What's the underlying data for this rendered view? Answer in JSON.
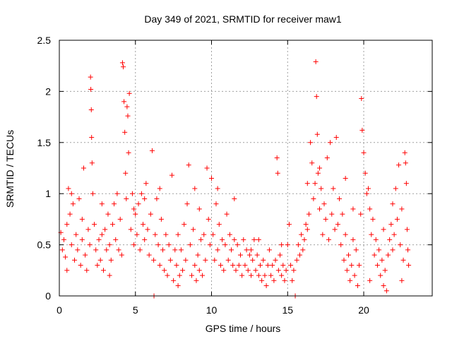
{
  "chart_data": {
    "type": "scatter",
    "title": "Day 349 of 2021, SRMTID for receiver maw1",
    "xlabel": "GPS time / hours",
    "ylabel": "SRMTID / TECUs",
    "xlim": [
      0,
      24.5
    ],
    "ylim": [
      0,
      2.5
    ],
    "x_ticks": [
      0,
      5,
      10,
      15,
      20
    ],
    "y_ticks": [
      0,
      0.5,
      1,
      1.5,
      2,
      2.5
    ],
    "grid": true,
    "marker": "plus",
    "color": "#ff0000",
    "series": [
      {
        "name": "SRMTID",
        "points": [
          [
            0.1,
            0.62
          ],
          [
            0.2,
            0.45
          ],
          [
            0.3,
            0.55
          ],
          [
            0.4,
            0.38
          ],
          [
            0.5,
            0.7
          ],
          [
            0.6,
            1.05
          ],
          [
            0.7,
            0.8
          ],
          [
            0.8,
            0.5
          ],
          [
            0.9,
            0.9
          ],
          [
            1.0,
            0.35
          ],
          [
            1.1,
            0.6
          ],
          [
            1.2,
            0.45
          ],
          [
            1.3,
            0.95
          ],
          [
            1.4,
            0.3
          ],
          [
            1.5,
            0.55
          ],
          [
            1.6,
            1.25
          ],
          [
            1.7,
            0.4
          ],
          [
            1.8,
            0.25
          ],
          [
            1.9,
            0.65
          ],
          [
            2.0,
            0.5
          ],
          [
            2.05,
            2.14
          ],
          [
            2.07,
            2.02
          ],
          [
            2.1,
            1.82
          ],
          [
            2.12,
            1.55
          ],
          [
            2.15,
            1.3
          ],
          [
            2.2,
            1.0
          ],
          [
            2.3,
            0.7
          ],
          [
            2.4,
            0.45
          ],
          [
            2.5,
            0.3
          ],
          [
            2.6,
            0.55
          ],
          [
            2.7,
            0.35
          ],
          [
            2.8,
            0.6
          ],
          [
            2.9,
            0.25
          ],
          [
            3.0,
            0.65
          ],
          [
            3.1,
            0.45
          ],
          [
            3.2,
            0.8
          ],
          [
            3.3,
            0.5
          ],
          [
            3.4,
            0.35
          ],
          [
            3.5,
            0.7
          ],
          [
            3.6,
            0.9
          ],
          [
            3.7,
            0.55
          ],
          [
            3.8,
            1.0
          ],
          [
            3.9,
            0.45
          ],
          [
            4.0,
            0.75
          ],
          [
            4.1,
            0.4
          ],
          [
            4.15,
            2.28
          ],
          [
            4.2,
            2.24
          ],
          [
            4.25,
            1.9
          ],
          [
            4.3,
            1.6
          ],
          [
            4.35,
            1.2
          ],
          [
            4.4,
            0.95
          ],
          [
            4.45,
            1.85
          ],
          [
            4.5,
            1.76
          ],
          [
            4.55,
            1.4
          ],
          [
            4.6,
            1.98
          ],
          [
            4.7,
            0.65
          ],
          [
            4.8,
            1.0
          ],
          [
            4.9,
            0.5
          ],
          [
            5.0,
            0.8
          ],
          [
            5.1,
            0.6
          ],
          [
            5.2,
            0.9
          ],
          [
            5.3,
            0.45
          ],
          [
            5.4,
            1.0
          ],
          [
            5.5,
            0.7
          ],
          [
            5.6,
            0.55
          ],
          [
            5.7,
            1.1
          ],
          [
            5.8,
            0.65
          ],
          [
            5.9,
            0.4
          ],
          [
            6.0,
            0.8
          ],
          [
            6.1,
            1.42
          ],
          [
            6.2,
            0.35
          ],
          [
            6.22,
            0.0
          ],
          [
            6.3,
            0.6
          ],
          [
            6.4,
            0.95
          ],
          [
            6.5,
            0.5
          ],
          [
            6.6,
            0.3
          ],
          [
            6.7,
            0.75
          ],
          [
            6.8,
            0.45
          ],
          [
            6.9,
            0.25
          ],
          [
            7.0,
            0.6
          ],
          [
            7.1,
            0.2
          ],
          [
            7.2,
            0.5
          ],
          [
            7.3,
            0.35
          ],
          [
            7.4,
            1.18
          ],
          [
            7.5,
            0.15
          ],
          [
            7.6,
            0.45
          ],
          [
            7.7,
            0.3
          ],
          [
            7.8,
            0.6
          ],
          [
            7.9,
            0.2
          ],
          [
            8.0,
            0.45
          ],
          [
            8.1,
            0.25
          ],
          [
            8.2,
            0.7
          ],
          [
            8.3,
            0.35
          ],
          [
            8.4,
            0.9
          ],
          [
            8.5,
            1.28
          ],
          [
            8.6,
            0.5
          ],
          [
            8.7,
            0.2
          ],
          [
            8.8,
            0.65
          ],
          [
            8.9,
            0.3
          ],
          [
            9.0,
            0.15
          ],
          [
            9.1,
            0.4
          ],
          [
            9.2,
            0.25
          ],
          [
            9.3,
            0.55
          ],
          [
            9.4,
            0.2
          ],
          [
            9.5,
            0.6
          ],
          [
            9.6,
            0.35
          ],
          [
            9.7,
            1.25
          ],
          [
            9.8,
            0.75
          ],
          [
            9.9,
            0.5
          ],
          [
            10.0,
            1.15
          ],
          [
            10.1,
            0.6
          ],
          [
            10.2,
            0.35
          ],
          [
            10.3,
            0.9
          ],
          [
            10.4,
            0.45
          ],
          [
            10.5,
            0.7
          ],
          [
            10.6,
            0.3
          ],
          [
            10.7,
            0.55
          ],
          [
            10.8,
            0.25
          ],
          [
            10.9,
            0.5
          ],
          [
            11.0,
            0.8
          ],
          [
            11.1,
            0.35
          ],
          [
            11.2,
            0.6
          ],
          [
            11.3,
            0.45
          ],
          [
            11.4,
            0.3
          ],
          [
            11.5,
            0.55
          ],
          [
            11.6,
            0.25
          ],
          [
            11.7,
            0.5
          ],
          [
            11.8,
            0.3
          ],
          [
            11.9,
            0.4
          ],
          [
            12.0,
            0.2
          ],
          [
            12.1,
            0.55
          ],
          [
            12.2,
            0.3
          ],
          [
            12.3,
            0.45
          ],
          [
            12.4,
            0.25
          ],
          [
            12.5,
            0.4
          ],
          [
            12.6,
            0.2
          ],
          [
            12.7,
            0.35
          ],
          [
            12.8,
            0.55
          ],
          [
            12.9,
            0.25
          ],
          [
            13.0,
            0.4
          ],
          [
            13.1,
            0.2
          ],
          [
            13.2,
            0.3
          ],
          [
            13.3,
            0.15
          ],
          [
            13.4,
            0.35
          ],
          [
            13.5,
            0.2
          ],
          [
            13.6,
            0.1
          ],
          [
            13.7,
            0.3
          ],
          [
            13.8,
            0.45
          ],
          [
            13.9,
            0.2
          ],
          [
            14.0,
            0.3
          ],
          [
            14.1,
            0.15
          ],
          [
            14.2,
            0.35
          ],
          [
            14.3,
            1.35
          ],
          [
            14.35,
            1.2
          ],
          [
            14.4,
            0.25
          ],
          [
            14.5,
            0.4
          ],
          [
            14.6,
            0.2
          ],
          [
            14.7,
            0.3
          ],
          [
            14.8,
            0.15
          ],
          [
            14.9,
            0.25
          ],
          [
            15.0,
            0.5
          ],
          [
            15.1,
            0.7
          ],
          [
            15.2,
            0.3
          ],
          [
            15.3,
            0.15
          ],
          [
            15.4,
            0.25
          ],
          [
            15.5,
            0.0
          ],
          [
            15.6,
            0.35
          ],
          [
            15.7,
            0.5
          ],
          [
            15.8,
            0.4
          ],
          [
            15.9,
            0.6
          ],
          [
            16.0,
            0.45
          ],
          [
            16.1,
            0.55
          ],
          [
            16.2,
            0.7
          ],
          [
            16.3,
            0.65
          ],
          [
            16.4,
            0.8
          ],
          [
            16.5,
            1.5
          ],
          [
            16.6,
            1.3
          ],
          [
            16.7,
            0.95
          ],
          [
            16.8,
            1.1
          ],
          [
            16.85,
            2.29
          ],
          [
            16.9,
            1.95
          ],
          [
            16.95,
            1.58
          ],
          [
            17.0,
            1.2
          ],
          [
            17.1,
            0.85
          ],
          [
            17.2,
            1.05
          ],
          [
            17.3,
            0.6
          ],
          [
            17.4,
            0.9
          ],
          [
            17.5,
            0.75
          ],
          [
            17.6,
            1.35
          ],
          [
            17.7,
            0.55
          ],
          [
            17.8,
            1.5
          ],
          [
            17.9,
            0.8
          ],
          [
            18.0,
            1.05
          ],
          [
            18.1,
            0.65
          ],
          [
            18.2,
            1.55
          ],
          [
            18.3,
            0.7
          ],
          [
            18.4,
            0.95
          ],
          [
            18.5,
            0.5
          ],
          [
            18.6,
            0.8
          ],
          [
            18.7,
            0.35
          ],
          [
            18.8,
            0.6
          ],
          [
            18.9,
            0.25
          ],
          [
            19.0,
            0.4
          ],
          [
            19.1,
            0.15
          ],
          [
            19.2,
            0.3
          ],
          [
            19.3,
            0.55
          ],
          [
            19.4,
            0.2
          ],
          [
            19.5,
            0.45
          ],
          [
            19.6,
            0.1
          ],
          [
            19.7,
            0.3
          ],
          [
            19.8,
            0.8
          ],
          [
            19.85,
            1.93
          ],
          [
            19.9,
            1.62
          ],
          [
            20.0,
            1.4
          ],
          [
            20.1,
            1.2
          ],
          [
            20.2,
            1.0
          ],
          [
            20.3,
            1.05
          ],
          [
            20.4,
            0.85
          ],
          [
            20.5,
            0.6
          ],
          [
            20.6,
            0.75
          ],
          [
            20.7,
            0.4
          ],
          [
            20.8,
            0.55
          ],
          [
            20.9,
            0.3
          ],
          [
            21.0,
            0.45
          ],
          [
            21.1,
            0.2
          ],
          [
            21.2,
            0.35
          ],
          [
            21.3,
            0.1
          ],
          [
            21.4,
            0.25
          ],
          [
            21.5,
            0.05
          ],
          [
            21.6,
            0.4
          ],
          [
            21.7,
            0.55
          ],
          [
            21.8,
            0.7
          ],
          [
            21.9,
            0.45
          ],
          [
            22.0,
            0.6
          ],
          [
            22.1,
            1.05
          ],
          [
            22.2,
            0.75
          ],
          [
            22.3,
            1.28
          ],
          [
            22.4,
            0.5
          ],
          [
            22.5,
            0.85
          ],
          [
            22.6,
            0.35
          ],
          [
            22.7,
            1.4
          ],
          [
            22.75,
            1.3
          ],
          [
            22.8,
            1.1
          ],
          [
            22.85,
            0.65
          ],
          [
            22.9,
            0.45
          ],
          [
            22.95,
            0.3
          ],
          [
            1.5,
            0.75
          ],
          [
            3.3,
            0.2
          ],
          [
            5.6,
            0.95
          ],
          [
            7.8,
            0.1
          ],
          [
            9.2,
            0.85
          ],
          [
            11.5,
            0.95
          ],
          [
            12.6,
            0.45
          ],
          [
            14.6,
            0.5
          ],
          [
            17.1,
            1.25
          ],
          [
            18.8,
            1.15
          ],
          [
            20.4,
            0.15
          ],
          [
            21.9,
            0.9
          ],
          [
            0.5,
            0.25
          ],
          [
            0.8,
            1.0
          ],
          [
            2.8,
            0.9
          ],
          [
            4.9,
            0.85
          ],
          [
            6.6,
            1.05
          ],
          [
            8.9,
            1.05
          ],
          [
            10.4,
            1.05
          ],
          [
            13.1,
            0.55
          ],
          [
            16.3,
            1.1
          ],
          [
            19.3,
            0.85
          ],
          [
            21.3,
            0.65
          ],
          [
            22.5,
            0.15
          ]
        ]
      }
    ]
  }
}
